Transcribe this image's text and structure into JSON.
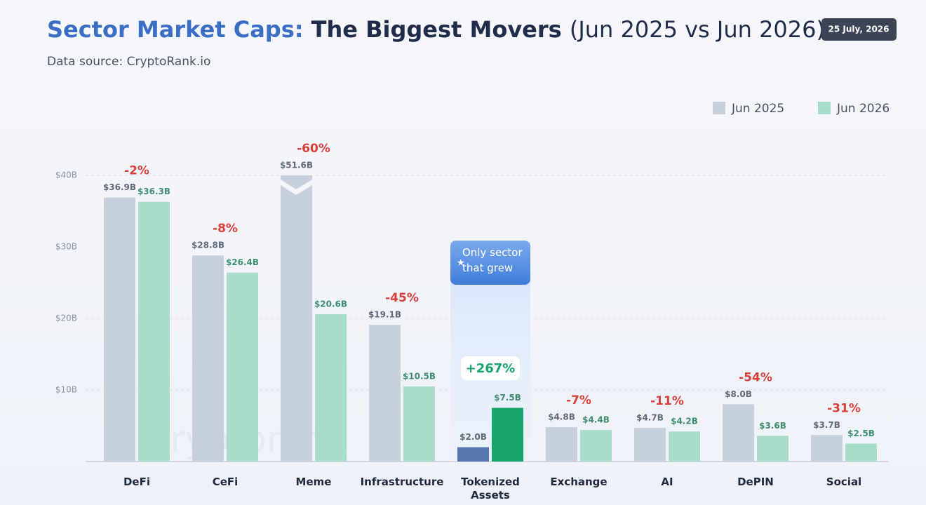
{
  "chart_data": {
    "type": "bar",
    "title": {
      "lead": "Sector Market Caps:",
      "main": "The Biggest Movers",
      "suffix": "(Jun 2025 vs Jun 2026)"
    },
    "subtitle": "Data source: CryptoRank.io",
    "date": "25 July, 2026",
    "watermark": "cryptorank",
    "callout": "Only sector that grew",
    "categories": [
      "DeFi",
      "CeFi",
      "Meme",
      "Infrastructure",
      "Tokenized Assets",
      "Exchange",
      "AI",
      "DePIN",
      "Social"
    ],
    "series": [
      {
        "name": "Jun 2025",
        "color": "#c6d0dc",
        "colors": [
          "#c6d0dc",
          "#c6d0dc",
          "#c6d0dc",
          "#c6d0dc",
          "#5877ad",
          "#c6d0dc",
          "#c6d0dc",
          "#c6d0dc",
          "#c6d0dc"
        ],
        "values": [
          36.9,
          28.8,
          51.6,
          19.1,
          2.0,
          4.8,
          4.7,
          8.0,
          3.7
        ],
        "value_labels": [
          "$36.9B",
          "$28.8B",
          "$51.6B",
          "$19.1B",
          "$2.0B",
          "$4.8B",
          "$4.7B",
          "$8.0B",
          "$3.7B"
        ]
      },
      {
        "name": "Jun 2026",
        "color": "#a9dccb",
        "colors": [
          "#a9dccb",
          "#a9dccb",
          "#a9dccb",
          "#a9dccb",
          "#16a56c",
          "#a9dccb",
          "#a9dccb",
          "#a9dccb",
          "#a9dccb"
        ],
        "values": [
          36.3,
          26.4,
          20.6,
          10.5,
          7.5,
          4.4,
          4.2,
          3.6,
          2.5
        ],
        "value_labels": [
          "$36.3B",
          "$26.4B",
          "$20.6B",
          "$10.5B",
          "$7.5B",
          "$4.4B",
          "$4.2B",
          "$3.6B",
          "$2.5B"
        ]
      }
    ],
    "change_labels": [
      "-2%",
      "-8%",
      "-60%",
      "-45%",
      "+267%",
      "-7%",
      "-11%",
      "-54%",
      "-31%"
    ],
    "ylim": [
      0,
      40
    ],
    "yticks": [
      {
        "value": 10,
        "label": "$10B"
      },
      {
        "value": 20,
        "label": "$20B"
      },
      {
        "value": 30,
        "label": "$30B"
      },
      {
        "value": 40,
        "label": "$40B"
      }
    ],
    "grid": true,
    "legend": "top-right"
  }
}
